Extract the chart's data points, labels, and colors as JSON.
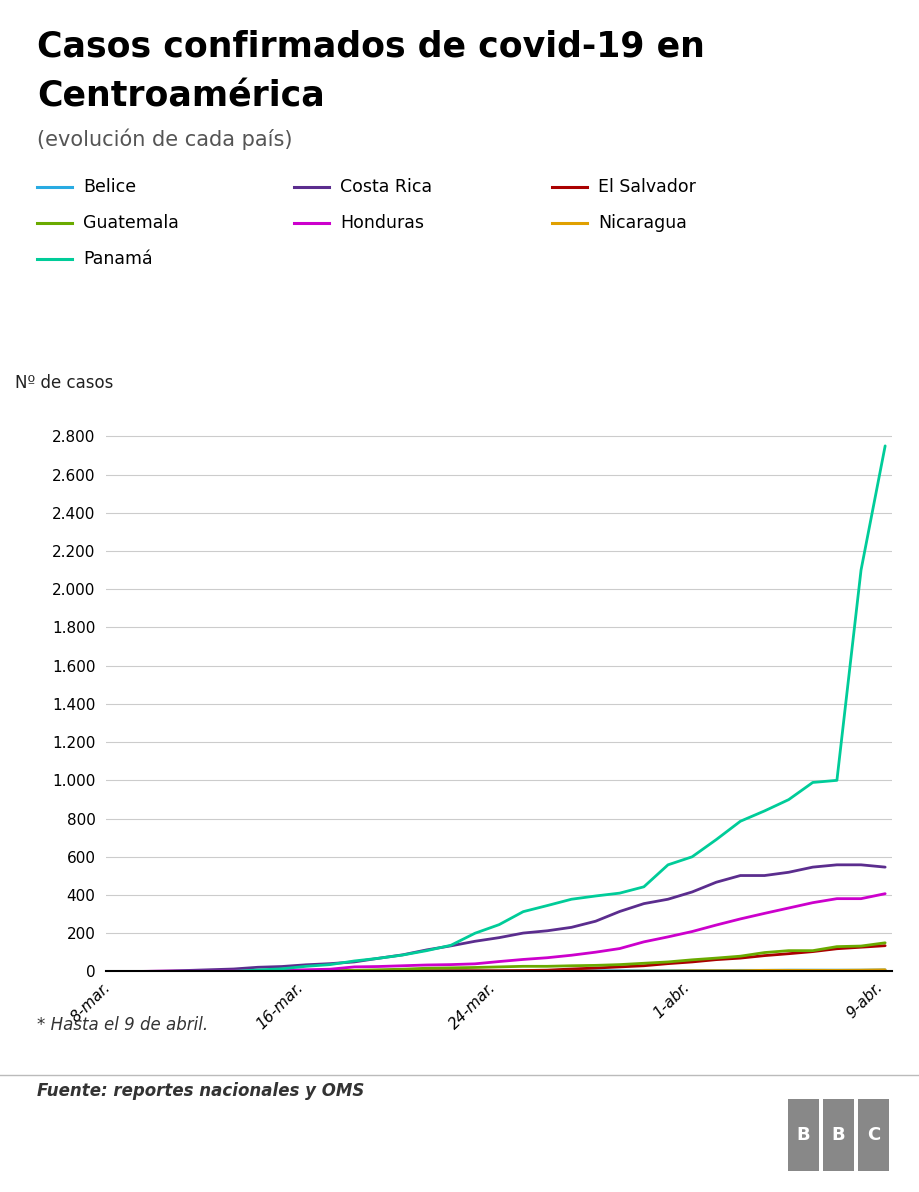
{
  "title_line1": "Casos confirmados de covid-19 en",
  "title_line2": "Centroamérica",
  "subtitle": "(evolución de cada país)",
  "ylabel": "Nº de casos",
  "footnote": "* Hasta el 9 de abril.",
  "source": "Fuente: reportes nacionales y OMS",
  "x_labels": [
    "8-mar.",
    "16-mar.",
    "24-mar.",
    "1-abr.",
    "9-abr."
  ],
  "x_tick_pos": [
    0,
    8,
    16,
    24,
    32
  ],
  "xlim": [
    -0.3,
    32.3
  ],
  "ylim": [
    0,
    2900
  ],
  "yticks": [
    0,
    200,
    400,
    600,
    800,
    1000,
    1200,
    1400,
    1600,
    1800,
    2000,
    2200,
    2400,
    2600,
    2800
  ],
  "countries": [
    {
      "name": "Belice",
      "color": "#29abe2",
      "data_x": [
        0,
        1,
        2,
        3,
        4,
        5,
        6,
        7,
        8,
        9,
        10,
        11,
        12,
        13,
        14,
        15,
        16,
        17,
        18,
        19,
        20,
        21,
        22,
        23,
        24,
        25,
        26,
        27,
        28,
        29,
        30,
        31,
        32
      ],
      "data_y": [
        0,
        0,
        0,
        0,
        0,
        0,
        0,
        0,
        2,
        2,
        2,
        2,
        2,
        2,
        3,
        3,
        3,
        4,
        4,
        4,
        4,
        4,
        4,
        4,
        5,
        5,
        6,
        6,
        7,
        7,
        7,
        7,
        8
      ]
    },
    {
      "name": "Costa Rica",
      "color": "#5b2d8e",
      "data_x": [
        0,
        1,
        2,
        3,
        4,
        5,
        6,
        7,
        8,
        9,
        10,
        11,
        12,
        13,
        14,
        15,
        16,
        17,
        18,
        19,
        20,
        21,
        22,
        23,
        24,
        25,
        26,
        27,
        28,
        29,
        30,
        31,
        32
      ],
      "data_y": [
        0,
        0,
        1,
        5,
        9,
        13,
        22,
        26,
        35,
        41,
        50,
        69,
        87,
        113,
        134,
        158,
        177,
        201,
        213,
        231,
        263,
        314,
        355,
        378,
        416,
        467,
        502,
        502,
        519,
        546,
        558,
        558,
        546
      ]
    },
    {
      "name": "El Salvador",
      "color": "#aa0000",
      "data_x": [
        0,
        1,
        2,
        3,
        4,
        5,
        6,
        7,
        8,
        9,
        10,
        11,
        12,
        13,
        14,
        15,
        16,
        17,
        18,
        19,
        20,
        21,
        22,
        23,
        24,
        25,
        26,
        27,
        28,
        29,
        30,
        31,
        32
      ],
      "data_y": [
        0,
        0,
        0,
        0,
        0,
        0,
        0,
        0,
        0,
        1,
        3,
        3,
        3,
        4,
        4,
        4,
        4,
        5,
        7,
        13,
        18,
        24,
        30,
        41,
        50,
        62,
        70,
        83,
        93,
        104,
        119,
        127,
        135
      ]
    },
    {
      "name": "Guatemala",
      "color": "#6aaa00",
      "data_x": [
        0,
        1,
        2,
        3,
        4,
        5,
        6,
        7,
        8,
        9,
        10,
        11,
        12,
        13,
        14,
        15,
        16,
        17,
        18,
        19,
        20,
        21,
        22,
        23,
        24,
        25,
        26,
        27,
        28,
        29,
        30,
        31,
        32
      ],
      "data_y": [
        0,
        0,
        0,
        0,
        0,
        0,
        1,
        1,
        1,
        6,
        6,
        9,
        12,
        17,
        19,
        21,
        24,
        27,
        27,
        30,
        32,
        36,
        43,
        50,
        61,
        70,
        80,
        99,
        109,
        109,
        130,
        133,
        150
      ]
    },
    {
      "name": "Honduras",
      "color": "#cc00cc",
      "data_x": [
        0,
        1,
        2,
        3,
        4,
        5,
        6,
        7,
        8,
        9,
        10,
        11,
        12,
        13,
        14,
        15,
        16,
        17,
        18,
        19,
        20,
        21,
        22,
        23,
        24,
        25,
        26,
        27,
        28,
        29,
        30,
        31,
        32
      ],
      "data_y": [
        0,
        0,
        2,
        2,
        2,
        3,
        4,
        6,
        9,
        12,
        24,
        26,
        30,
        34,
        36,
        40,
        52,
        63,
        72,
        85,
        101,
        120,
        155,
        181,
        209,
        243,
        275,
        304,
        332,
        360,
        381,
        381,
        407
      ]
    },
    {
      "name": "Nicaragua",
      "color": "#e0a000",
      "data_x": [
        0,
        1,
        2,
        3,
        4,
        5,
        6,
        7,
        8,
        9,
        10,
        11,
        12,
        13,
        14,
        15,
        16,
        17,
        18,
        19,
        20,
        21,
        22,
        23,
        24,
        25,
        26,
        27,
        28,
        29,
        30,
        31,
        32
      ],
      "data_y": [
        0,
        0,
        0,
        0,
        0,
        0,
        0,
        0,
        0,
        0,
        1,
        1,
        1,
        1,
        1,
        1,
        1,
        1,
        1,
        1,
        1,
        1,
        2,
        2,
        4,
        4,
        4,
        6,
        6,
        6,
        6,
        7,
        9
      ]
    },
    {
      "name": "Panamá",
      "color": "#00cc99",
      "data_x": [
        0,
        1,
        2,
        3,
        4,
        5,
        6,
        7,
        8,
        9,
        10,
        11,
        12,
        13,
        14,
        15,
        16,
        17,
        18,
        19,
        20,
        21,
        22,
        23,
        24,
        25,
        26,
        27,
        28,
        29,
        30,
        31,
        32
      ],
      "data_y": [
        0,
        0,
        0,
        1,
        1,
        1,
        8,
        14,
        27,
        36,
        55,
        69,
        86,
        109,
        137,
        200,
        245,
        313,
        345,
        378,
        395,
        410,
        443,
        558,
        600,
        690,
        786,
        840,
        899,
        989,
        1000,
        2100,
        2750
      ]
    }
  ],
  "legend_items": [
    [
      "Belice",
      "#29abe2"
    ],
    [
      "Costa Rica",
      "#5b2d8e"
    ],
    [
      "El Salvador",
      "#aa0000"
    ],
    [
      "Guatemala",
      "#6aaa00"
    ],
    [
      "Honduras",
      "#cc00cc"
    ],
    [
      "Nicaragua",
      "#e0a000"
    ],
    [
      "Panamá",
      "#00cc99"
    ]
  ],
  "background_color": "#ffffff",
  "grid_color": "#cccccc",
  "spine_bottom_color": "#000000"
}
